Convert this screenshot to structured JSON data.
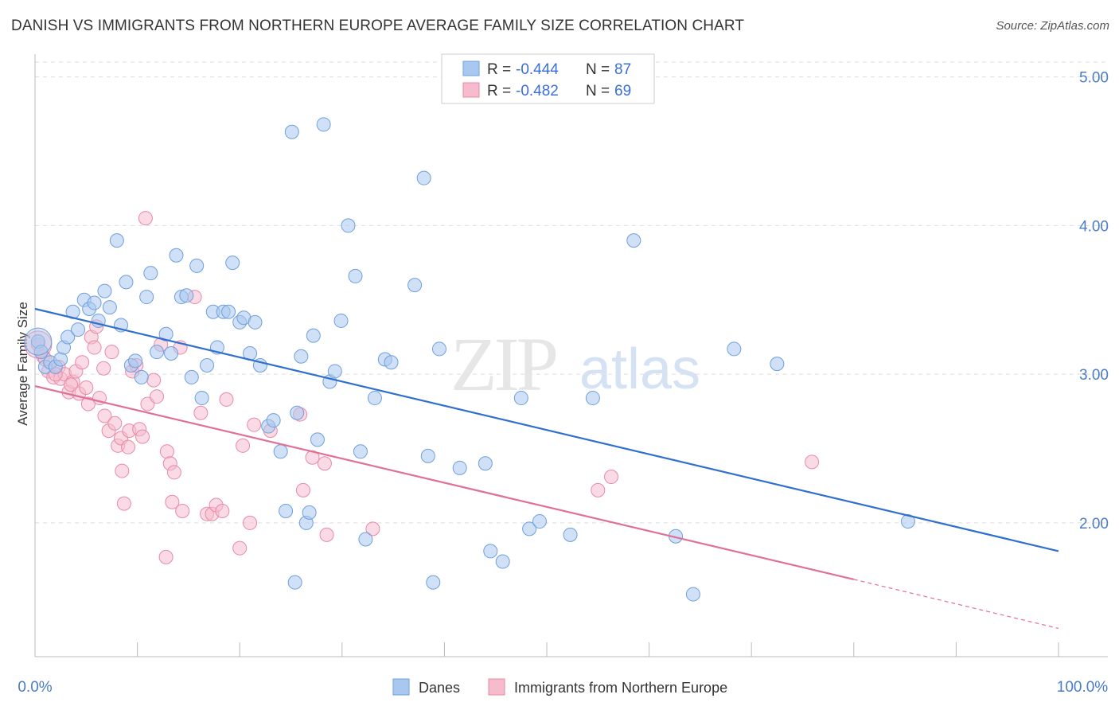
{
  "title": "DANISH VS IMMIGRANTS FROM NORTHERN EUROPE AVERAGE FAMILY SIZE CORRELATION CHART",
  "source": "Source: ZipAtlas.com",
  "watermark": {
    "zip": "ZIP",
    "atlas": "atlas"
  },
  "colors": {
    "danes_fill": "#a9c8f0",
    "danes_stroke": "#6f9fdc",
    "danes_line": "#2f6fcf",
    "immigrants_fill": "#f6bccd",
    "immigrants_stroke": "#e88aa6",
    "immigrants_line": "#e07098",
    "tick_label": "#4a7cc9",
    "grid": "#dddddd"
  },
  "legend": {
    "rows": [
      {
        "r_label": "R = ",
        "r_value": "-0.444",
        "n_label": "N = ",
        "n_value": "87"
      },
      {
        "r_label": "R = ",
        "r_value": "-0.482",
        "n_label": "N = ",
        "n_value": "69"
      }
    ]
  },
  "chart_data": {
    "type": "scatter",
    "title": "DANISH VS IMMIGRANTS FROM NORTHERN EUROPE AVERAGE FAMILY SIZE CORRELATION CHART",
    "xlabel": "",
    "ylabel": "Average Family Size",
    "xlim": [
      0,
      100
    ],
    "ylim": [
      1.1,
      5.1
    ],
    "x_tick_labels": [
      "0.0%",
      "100.0%"
    ],
    "y_ticks": [
      2.0,
      3.0,
      4.0,
      5.0
    ],
    "y_tick_labels": [
      "2.00",
      "3.00",
      "4.00",
      "5.00"
    ],
    "grid": true,
    "legend_position": "top-center",
    "series": [
      {
        "name": "Danes",
        "stats": {
          "r": -0.444,
          "n": 87
        },
        "trend": {
          "x0": 0,
          "y0": 3.44,
          "x1": 100,
          "y1": 1.81
        },
        "points": [
          [
            0.3,
            3.22
          ],
          [
            0.6,
            3.15
          ],
          [
            1.0,
            3.05
          ],
          [
            1.5,
            3.08
          ],
          [
            2.0,
            3.05
          ],
          [
            2.5,
            3.1
          ],
          [
            2.8,
            3.18
          ],
          [
            3.2,
            3.25
          ],
          [
            3.7,
            3.42
          ],
          [
            4.2,
            3.3
          ],
          [
            4.8,
            3.5
          ],
          [
            5.3,
            3.44
          ],
          [
            5.8,
            3.48
          ],
          [
            6.2,
            3.36
          ],
          [
            6.8,
            3.56
          ],
          [
            7.3,
            3.45
          ],
          [
            8.0,
            3.9
          ],
          [
            8.4,
            3.33
          ],
          [
            8.9,
            3.62
          ],
          [
            9.4,
            3.06
          ],
          [
            9.8,
            3.09
          ],
          [
            10.4,
            2.98
          ],
          [
            10.9,
            3.52
          ],
          [
            11.3,
            3.68
          ],
          [
            11.9,
            3.15
          ],
          [
            12.8,
            3.27
          ],
          [
            13.3,
            3.14
          ],
          [
            13.8,
            3.8
          ],
          [
            14.3,
            3.52
          ],
          [
            14.8,
            3.53
          ],
          [
            15.3,
            2.98
          ],
          [
            15.8,
            3.73
          ],
          [
            16.3,
            2.84
          ],
          [
            16.8,
            3.06
          ],
          [
            17.4,
            3.42
          ],
          [
            17.8,
            3.18
          ],
          [
            18.4,
            3.42
          ],
          [
            18.9,
            3.42
          ],
          [
            19.3,
            3.75
          ],
          [
            20.0,
            3.35
          ],
          [
            20.4,
            3.38
          ],
          [
            21.0,
            3.14
          ],
          [
            21.5,
            3.35
          ],
          [
            22.0,
            3.06
          ],
          [
            22.8,
            2.65
          ],
          [
            23.3,
            2.69
          ],
          [
            24.0,
            2.48
          ],
          [
            24.5,
            2.08
          ],
          [
            25.1,
            4.63
          ],
          [
            25.6,
            2.74
          ],
          [
            26.0,
            3.12
          ],
          [
            26.5,
            2.0
          ],
          [
            27.2,
            3.26
          ],
          [
            27.6,
            2.56
          ],
          [
            28.2,
            4.68
          ],
          [
            28.8,
            2.95
          ],
          [
            29.3,
            3.02
          ],
          [
            29.9,
            3.36
          ],
          [
            30.6,
            4.0
          ],
          [
            31.3,
            3.66
          ],
          [
            31.8,
            2.48
          ],
          [
            32.3,
            1.89
          ],
          [
            33.2,
            2.84
          ],
          [
            34.2,
            3.1
          ],
          [
            34.8,
            3.08
          ],
          [
            37.1,
            3.6
          ],
          [
            38.0,
            4.32
          ],
          [
            38.4,
            2.45
          ],
          [
            38.9,
            1.6
          ],
          [
            39.5,
            3.17
          ],
          [
            41.5,
            2.37
          ],
          [
            44.0,
            2.4
          ],
          [
            44.5,
            1.81
          ],
          [
            45.7,
            1.74
          ],
          [
            47.5,
            2.84
          ],
          [
            48.3,
            1.96
          ],
          [
            49.3,
            2.01
          ],
          [
            52.3,
            1.92
          ],
          [
            54.5,
            2.84
          ],
          [
            58.5,
            3.9
          ],
          [
            62.6,
            1.91
          ],
          [
            64.3,
            1.52
          ],
          [
            68.3,
            3.17
          ],
          [
            72.5,
            3.07
          ],
          [
            85.3,
            2.01
          ],
          [
            25.4,
            1.6
          ],
          [
            26.8,
            2.07
          ]
        ],
        "big_points": [
          [
            0.3,
            3.22
          ]
        ]
      },
      {
        "name": "Immigrants from Northern Europe",
        "stats": {
          "r": -0.482,
          "n": 69
        },
        "trend": {
          "x0": 0,
          "y0": 2.92,
          "x1": 80,
          "y1": 1.62,
          "dash_x1": 100,
          "dash_y1": 1.29
        },
        "points": [
          [
            0.3,
            3.2
          ],
          [
            0.8,
            3.12
          ],
          [
            1.3,
            3.02
          ],
          [
            1.8,
            2.98
          ],
          [
            2.3,
            3.05
          ],
          [
            2.5,
            2.97
          ],
          [
            2.9,
            3.0
          ],
          [
            3.3,
            2.88
          ],
          [
            3.7,
            2.95
          ],
          [
            4.0,
            3.02
          ],
          [
            4.3,
            2.87
          ],
          [
            4.6,
            3.08
          ],
          [
            5.0,
            2.91
          ],
          [
            5.2,
            2.8
          ],
          [
            5.5,
            3.25
          ],
          [
            5.8,
            3.18
          ],
          [
            6.0,
            3.32
          ],
          [
            6.3,
            2.84
          ],
          [
            6.7,
            3.04
          ],
          [
            6.8,
            2.72
          ],
          [
            7.2,
            2.62
          ],
          [
            7.5,
            3.15
          ],
          [
            7.8,
            2.67
          ],
          [
            8.1,
            2.52
          ],
          [
            8.4,
            2.57
          ],
          [
            8.5,
            2.35
          ],
          [
            8.7,
            2.13
          ],
          [
            9.1,
            2.51
          ],
          [
            9.2,
            2.62
          ],
          [
            9.5,
            3.02
          ],
          [
            9.9,
            3.06
          ],
          [
            10.2,
            2.63
          ],
          [
            10.5,
            2.58
          ],
          [
            10.8,
            4.05
          ],
          [
            11.0,
            2.8
          ],
          [
            11.6,
            2.96
          ],
          [
            11.9,
            2.85
          ],
          [
            12.3,
            3.2
          ],
          [
            12.8,
            1.77
          ],
          [
            12.9,
            2.48
          ],
          [
            13.2,
            2.4
          ],
          [
            13.4,
            2.14
          ],
          [
            13.6,
            2.34
          ],
          [
            14.2,
            3.18
          ],
          [
            14.4,
            2.08
          ],
          [
            15.6,
            3.52
          ],
          [
            16.2,
            2.74
          ],
          [
            16.8,
            2.06
          ],
          [
            17.3,
            2.06
          ],
          [
            17.7,
            2.12
          ],
          [
            18.3,
            2.08
          ],
          [
            18.7,
            2.83
          ],
          [
            20.0,
            1.83
          ],
          [
            20.3,
            2.52
          ],
          [
            21.0,
            2.0
          ],
          [
            21.4,
            2.66
          ],
          [
            23.0,
            2.62
          ],
          [
            25.9,
            2.73
          ],
          [
            26.2,
            2.22
          ],
          [
            27.1,
            2.44
          ],
          [
            28.3,
            2.4
          ],
          [
            28.5,
            1.92
          ],
          [
            33.0,
            1.96
          ],
          [
            55.0,
            2.22
          ],
          [
            56.3,
            2.31
          ],
          [
            75.9,
            2.41
          ],
          [
            1.0,
            3.1
          ],
          [
            2.0,
            3.0
          ],
          [
            3.5,
            2.93
          ]
        ],
        "big_points": [
          [
            0.3,
            3.2
          ]
        ]
      }
    ]
  },
  "bottom_legend": [
    {
      "label": "Danes"
    },
    {
      "label": "Immigrants from Northern Europe"
    }
  ]
}
